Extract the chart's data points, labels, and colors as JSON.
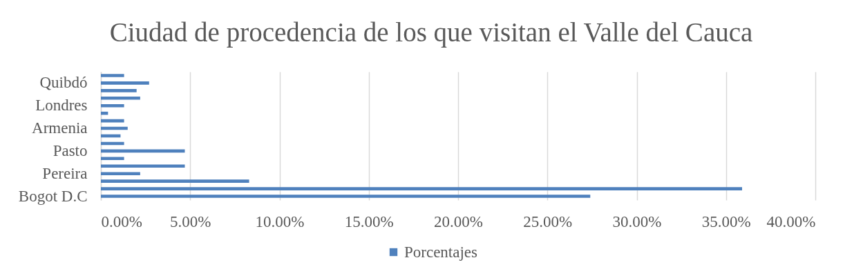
{
  "chart_data": {
    "type": "bar",
    "orientation": "horizontal",
    "title": "Ciudad de procedencia de los que visitan el Valle del Cauca",
    "categories": [
      null,
      "Quibdó",
      null,
      null,
      "Londres",
      null,
      null,
      "Armenia",
      null,
      null,
      "Pasto",
      null,
      null,
      "Pereira",
      null,
      null,
      "Bogot D.C"
    ],
    "series": [
      {
        "name": "Porcentajes",
        "color": "#4f81bd",
        "values": [
          1.3,
          2.7,
          2.0,
          2.2,
          1.3,
          0.4,
          1.3,
          1.5,
          1.1,
          1.3,
          4.7,
          1.3,
          4.7,
          2.2,
          8.3,
          35.9,
          27.4
        ]
      }
    ],
    "xlim": [
      0,
      40
    ],
    "xticks": [
      {
        "value": 0,
        "label": "0.00%"
      },
      {
        "value": 5,
        "label": "5.00%"
      },
      {
        "value": 10,
        "label": "10.00%"
      },
      {
        "value": 15,
        "label": "15.00%"
      },
      {
        "value": 20,
        "label": "20.00%"
      },
      {
        "value": 25,
        "label": "25.00%"
      },
      {
        "value": 30,
        "label": "30.00%"
      },
      {
        "value": 35,
        "label": "35.00%"
      },
      {
        "value": 40,
        "label": "40.00%"
      }
    ],
    "grid": "x",
    "legend": "bottom"
  }
}
